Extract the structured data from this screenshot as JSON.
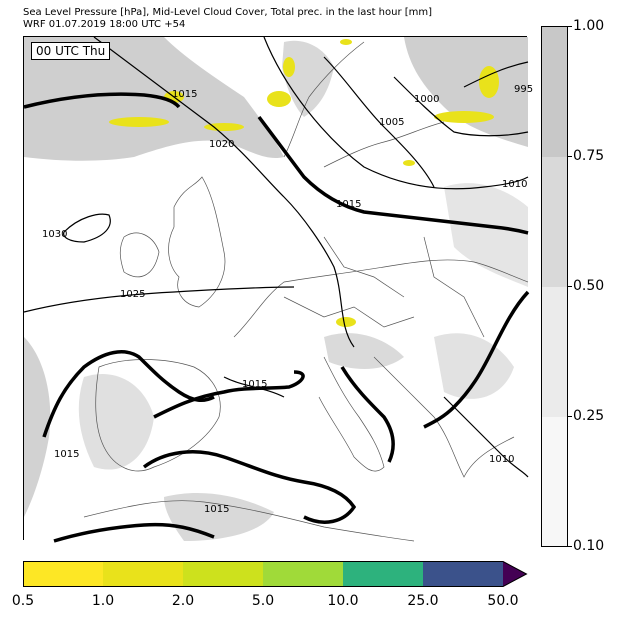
{
  "header": {
    "line1": "Sea Level Pressure [hPa], Mid-Level Cloud Cover, Total prec. in the last hour [mm]",
    "line2": "WRF 01.07.2019 18:00 UTC +54"
  },
  "map": {
    "time_label": "00 UTC Thu",
    "isobar_labels": [
      "1015",
      "1020",
      "1030",
      "1025",
      "1015",
      "1015",
      "1015",
      "1005",
      "1000",
      "995",
      "1010",
      "1015",
      "1010"
    ]
  },
  "cloud_colorbar": {
    "ticks": [
      "1.00",
      "0.75",
      "0.50",
      "0.25",
      "0.10"
    ],
    "colors": [
      "#c8c8c8",
      "#d9d9d9",
      "#ebebeb",
      "#f7f7f7"
    ]
  },
  "precip_colorbar": {
    "ticks": [
      "0.5",
      "1.0",
      "2.0",
      "5.0",
      "10.0",
      "25.0",
      "50.0"
    ],
    "colors": [
      "#fde725",
      "#e9e21b",
      "#cde11d",
      "#a0da39",
      "#2db27d",
      "#3b528b",
      "#440154"
    ]
  }
}
